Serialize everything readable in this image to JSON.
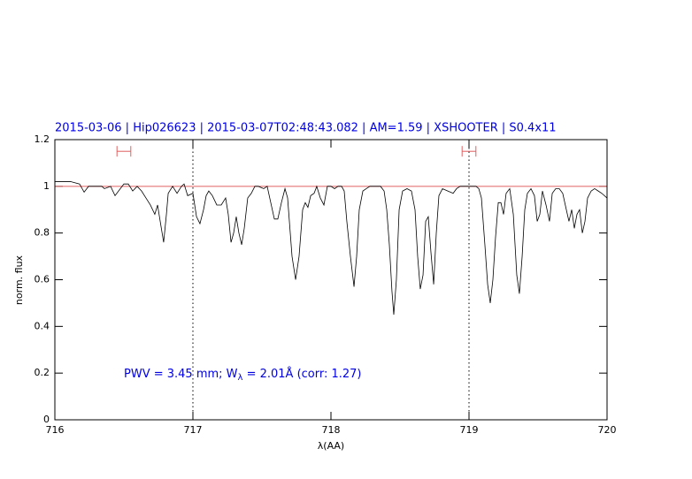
{
  "chart_data": {
    "type": "line",
    "title": "2015-03-06 | Hip026623 | 2015-03-07T02:48:43.082 | AM=1.59 | XSHOOTER | S0.4x11",
    "xlabel": "λ(AA)",
    "ylabel": "norm. flux",
    "annotation": {
      "main": "PWV = 3.45 mm; W",
      "subscript": "λ",
      "rest": " = 2.01Å (corr: 1.27)"
    },
    "xlim": [
      716,
      720
    ],
    "xticks": [
      716,
      717,
      718,
      719,
      720
    ],
    "ylim": [
      0,
      1.2
    ],
    "yticks": [
      0,
      0.2,
      0.4,
      0.6,
      0.8,
      1,
      1.2
    ],
    "color": "#000000",
    "x": [
      716,
      716.115,
      716.179,
      716.212,
      716.244,
      716.34,
      716.359,
      716.404,
      716.436,
      716.5,
      716.532,
      716.564,
      716.596,
      716.628,
      716.66,
      716.692,
      716.724,
      716.744,
      716.763,
      716.788,
      716.808,
      716.821,
      716.853,
      716.885,
      716.917,
      716.936,
      716.962,
      717,
      717.026,
      717.051,
      717.077,
      717.096,
      717.115,
      717.141,
      717.173,
      717.205,
      717.237,
      717.256,
      717.276,
      717.295,
      717.314,
      717.333,
      717.353,
      717.372,
      717.397,
      717.423,
      717.449,
      717.474,
      717.513,
      717.538,
      717.564,
      717.59,
      717.615,
      717.641,
      717.667,
      717.686,
      717.718,
      717.744,
      717.769,
      717.795,
      717.814,
      717.833,
      717.853,
      717.878,
      717.897,
      717.923,
      717.949,
      717.974,
      718,
      718.026,
      718.051,
      718.077,
      718.096,
      718.115,
      718.141,
      718.167,
      718.186,
      718.205,
      718.231,
      718.256,
      718.282,
      718.321,
      718.359,
      718.385,
      718.404,
      718.423,
      718.442,
      718.455,
      718.474,
      718.494,
      718.519,
      718.551,
      718.583,
      718.609,
      718.628,
      718.647,
      718.667,
      718.686,
      718.705,
      718.724,
      718.744,
      718.763,
      718.782,
      718.808,
      718.846,
      718.885,
      718.91,
      718.936,
      718.974,
      719.013,
      719.051,
      719.071,
      719.09,
      719.115,
      719.135,
      719.154,
      719.173,
      719.192,
      719.212,
      719.231,
      719.25,
      719.269,
      719.295,
      719.321,
      719.346,
      719.365,
      719.385,
      719.404,
      719.423,
      719.449,
      719.474,
      719.494,
      719.513,
      719.532,
      719.558,
      719.583,
      719.603,
      719.628,
      719.654,
      719.679,
      719.705,
      719.724,
      719.744,
      719.763,
      719.782,
      719.801,
      719.821,
      719.84,
      719.859,
      719.885,
      719.91,
      719.936,
      719.962,
      720
    ],
    "values": [
      1.02,
      1.02,
      1.01,
      0.975,
      1,
      1,
      0.99,
      1,
      0.96,
      1.01,
      1.01,
      0.98,
      1,
      0.98,
      0.95,
      0.92,
      0.88,
      0.92,
      0.85,
      0.76,
      0.88,
      0.97,
      1,
      0.97,
      1,
      1.01,
      0.96,
      0.97,
      0.87,
      0.84,
      0.9,
      0.96,
      0.98,
      0.96,
      0.92,
      0.92,
      0.95,
      0.88,
      0.76,
      0.8,
      0.87,
      0.8,
      0.75,
      0.82,
      0.95,
      0.97,
      1,
      1,
      0.99,
      1,
      0.93,
      0.86,
      0.86,
      0.93,
      0.99,
      0.95,
      0.7,
      0.6,
      0.7,
      0.9,
      0.93,
      0.91,
      0.96,
      0.97,
      1,
      0.95,
      0.92,
      1,
      1,
      0.99,
      1,
      1,
      0.98,
      0.85,
      0.7,
      0.57,
      0.7,
      0.9,
      0.98,
      0.99,
      1,
      1,
      1,
      0.98,
      0.9,
      0.75,
      0.55,
      0.45,
      0.6,
      0.9,
      0.98,
      0.99,
      0.98,
      0.9,
      0.7,
      0.56,
      0.62,
      0.85,
      0.87,
      0.72,
      0.58,
      0.8,
      0.96,
      0.99,
      0.98,
      0.97,
      0.99,
      1,
      1,
      1,
      1,
      0.99,
      0.95,
      0.75,
      0.58,
      0.5,
      0.6,
      0.78,
      0.93,
      0.93,
      0.88,
      0.97,
      0.99,
      0.88,
      0.62,
      0.54,
      0.7,
      0.9,
      0.97,
      0.99,
      0.96,
      0.85,
      0.88,
      0.98,
      0.92,
      0.85,
      0.97,
      0.99,
      0.99,
      0.97,
      0.9,
      0.85,
      0.9,
      0.82,
      0.88,
      0.9,
      0.8,
      0.85,
      0.95,
      0.98,
      0.99,
      0.98,
      0.97,
      0.95
    ],
    "reference_line": {
      "y": 1,
      "color": "#e06060"
    },
    "vlines": [
      717,
      719
    ],
    "error_bars": [
      {
        "x": 716.5,
        "xerr": 0.05,
        "y": 1.15,
        "color": "#e06060"
      },
      {
        "x": 719,
        "xerr": 0.05,
        "y": 1.15,
        "color": "#e06060"
      }
    ],
    "text_color": "#0000e0"
  }
}
